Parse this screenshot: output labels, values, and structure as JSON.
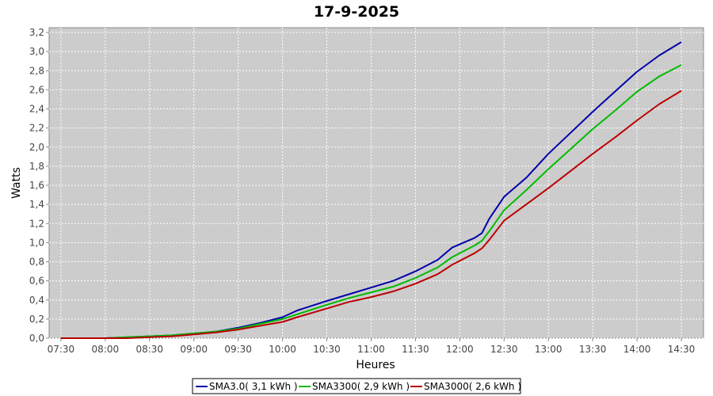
{
  "chart_data": {
    "type": "line",
    "title": "17-9-2025",
    "xlabel": "Heures",
    "ylabel": "Watts",
    "ylim": [
      0,
      3.25
    ],
    "y_ticks": [
      "0,0",
      "0,2",
      "0,4",
      "0,6",
      "0,8",
      "1,0",
      "1,2",
      "1,4",
      "1,6",
      "1,8",
      "2,0",
      "2,2",
      "2,4",
      "2,6",
      "2,8",
      "3,0",
      "3,2"
    ],
    "y_tick_values": [
      0,
      0.2,
      0.4,
      0.6,
      0.8,
      1.0,
      1.2,
      1.4,
      1.6,
      1.8,
      2.0,
      2.2,
      2.4,
      2.6,
      2.8,
      3.0,
      3.2
    ],
    "x_range": [
      "07:22",
      "14:45"
    ],
    "x_ticks": [
      "07:30",
      "08:00",
      "08:30",
      "09:00",
      "09:30",
      "10:00",
      "10:30",
      "11:00",
      "11:30",
      "12:00",
      "12:30",
      "13:00",
      "13:30",
      "14:00",
      "14:30"
    ],
    "grid": true,
    "legend_position": "bottom",
    "series": [
      {
        "name": "SMA3.0( 3,1 kWh )",
        "color": "#0000aa",
        "points": [
          [
            "07:30",
            0.0
          ],
          [
            "08:00",
            0.0
          ],
          [
            "08:15",
            0.01
          ],
          [
            "08:30",
            0.02
          ],
          [
            "08:45",
            0.03
          ],
          [
            "09:00",
            0.05
          ],
          [
            "09:15",
            0.07
          ],
          [
            "09:30",
            0.11
          ],
          [
            "09:45",
            0.16
          ],
          [
            "10:00",
            0.22
          ],
          [
            "10:10",
            0.29
          ],
          [
            "10:30",
            0.39
          ],
          [
            "10:45",
            0.46
          ],
          [
            "11:00",
            0.53
          ],
          [
            "11:15",
            0.6
          ],
          [
            "11:30",
            0.7
          ],
          [
            "11:45",
            0.82
          ],
          [
            "11:55",
            0.95
          ],
          [
            "12:10",
            1.05
          ],
          [
            "12:15",
            1.1
          ],
          [
            "12:20",
            1.25
          ],
          [
            "12:30",
            1.48
          ],
          [
            "12:45",
            1.68
          ],
          [
            "13:00",
            1.93
          ],
          [
            "13:15",
            2.15
          ],
          [
            "13:30",
            2.37
          ],
          [
            "13:45",
            2.58
          ],
          [
            "14:00",
            2.79
          ],
          [
            "14:15",
            2.96
          ],
          [
            "14:30",
            3.1
          ]
        ]
      },
      {
        "name": "SMA3300( 2,9 kWh )",
        "color": "#00bb00",
        "points": [
          [
            "07:30",
            0.0
          ],
          [
            "08:00",
            0.0
          ],
          [
            "08:15",
            0.01
          ],
          [
            "08:30",
            0.02
          ],
          [
            "08:45",
            0.03
          ],
          [
            "09:00",
            0.05
          ],
          [
            "09:15",
            0.07
          ],
          [
            "09:30",
            0.1
          ],
          [
            "09:45",
            0.15
          ],
          [
            "10:00",
            0.2
          ],
          [
            "10:10",
            0.25
          ],
          [
            "10:30",
            0.35
          ],
          [
            "10:45",
            0.42
          ],
          [
            "11:00",
            0.48
          ],
          [
            "11:15",
            0.54
          ],
          [
            "11:30",
            0.63
          ],
          [
            "11:45",
            0.74
          ],
          [
            "11:55",
            0.85
          ],
          [
            "12:10",
            0.97
          ],
          [
            "12:15",
            1.02
          ],
          [
            "12:20",
            1.12
          ],
          [
            "12:30",
            1.34
          ],
          [
            "12:45",
            1.55
          ],
          [
            "13:00",
            1.77
          ],
          [
            "13:15",
            1.98
          ],
          [
            "13:30",
            2.19
          ],
          [
            "13:45",
            2.38
          ],
          [
            "14:00",
            2.58
          ],
          [
            "14:15",
            2.74
          ],
          [
            "14:30",
            2.86
          ]
        ]
      },
      {
        "name": "SMA3000( 2,6 kWh )",
        "color": "#bb0000",
        "points": [
          [
            "07:30",
            0.0
          ],
          [
            "08:00",
            0.0
          ],
          [
            "08:15",
            0.0
          ],
          [
            "08:30",
            0.01
          ],
          [
            "08:45",
            0.02
          ],
          [
            "09:00",
            0.04
          ],
          [
            "09:15",
            0.06
          ],
          [
            "09:30",
            0.09
          ],
          [
            "09:45",
            0.13
          ],
          [
            "10:00",
            0.17
          ],
          [
            "10:10",
            0.22
          ],
          [
            "10:30",
            0.31
          ],
          [
            "10:45",
            0.38
          ],
          [
            "11:00",
            0.43
          ],
          [
            "11:15",
            0.49
          ],
          [
            "11:30",
            0.57
          ],
          [
            "11:45",
            0.67
          ],
          [
            "11:55",
            0.77
          ],
          [
            "12:10",
            0.89
          ],
          [
            "12:15",
            0.94
          ],
          [
            "12:20",
            1.03
          ],
          [
            "12:30",
            1.23
          ],
          [
            "12:45",
            1.4
          ],
          [
            "13:00",
            1.57
          ],
          [
            "13:15",
            1.75
          ],
          [
            "13:30",
            1.93
          ],
          [
            "13:45",
            2.1
          ],
          [
            "14:00",
            2.28
          ],
          [
            "14:15",
            2.45
          ],
          [
            "14:30",
            2.59
          ]
        ]
      }
    ]
  }
}
